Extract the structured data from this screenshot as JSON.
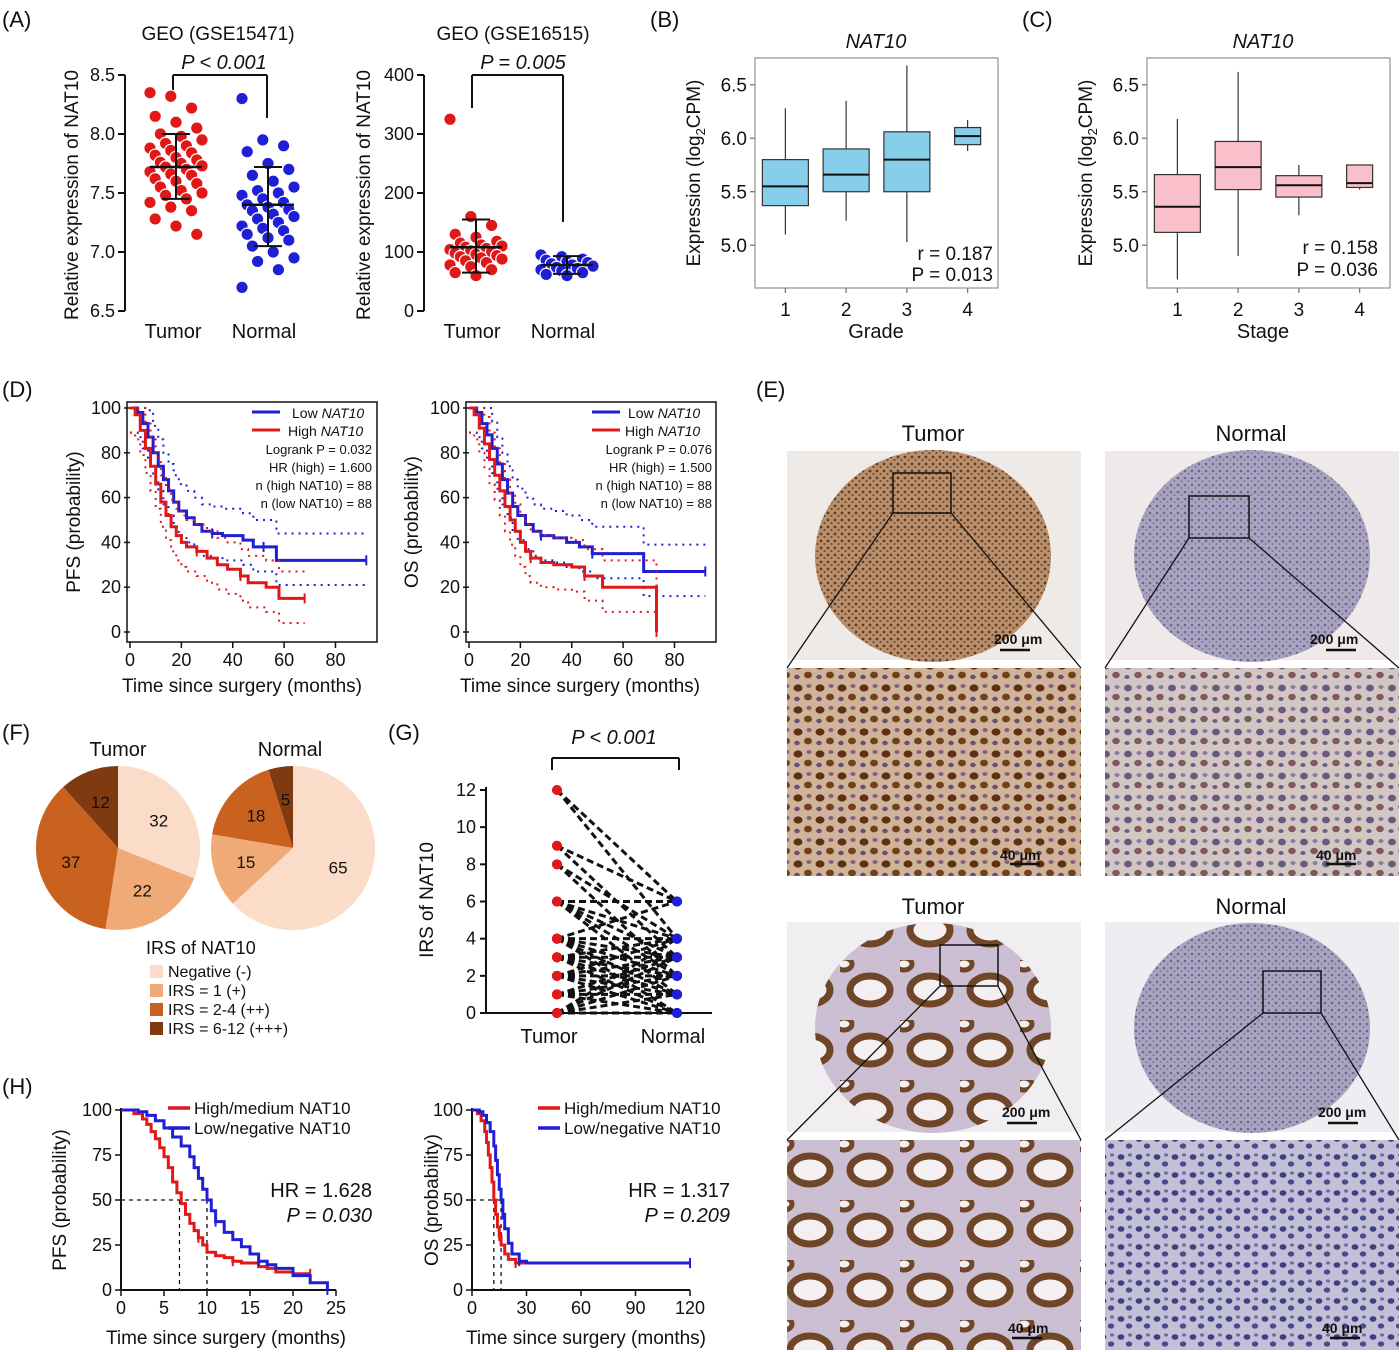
{
  "panels": {
    "A": "(A)",
    "B": "(B)",
    "C": "(C)",
    "D": "(D)",
    "E": "(E)",
    "F": "(F)",
    "G": "(G)",
    "H": "(H)"
  },
  "chart_data": [
    {
      "id": "A1",
      "type": "scatter",
      "title": "GEO (GSE15471)",
      "ylabel": "Relative expression of NAT10",
      "ylim": [
        6.5,
        8.5
      ],
      "yticks": [
        6.5,
        7.0,
        7.5,
        8.0,
        8.5
      ],
      "categories": [
        "Tumor",
        "Normal"
      ],
      "annotation": "P < 0.001",
      "summary": [
        {
          "group": "Tumor",
          "mean": 7.72,
          "sd_low": 7.45,
          "sd_high": 8.0
        },
        {
          "group": "Normal",
          "mean": 7.4,
          "sd_low": 7.05,
          "sd_high": 7.72
        }
      ],
      "series": [
        {
          "group": "Tumor",
          "values": [
            8.35,
            8.32,
            8.22,
            8.15,
            8.1,
            8.05,
            8.0,
            7.98,
            7.95,
            7.92,
            7.9,
            7.88,
            7.86,
            7.84,
            7.82,
            7.8,
            7.78,
            7.76,
            7.75,
            7.73,
            7.72,
            7.7,
            7.68,
            7.66,
            7.65,
            7.62,
            7.6,
            7.58,
            7.55,
            7.52,
            7.5,
            7.48,
            7.45,
            7.42,
            7.38,
            7.35,
            7.28,
            7.22,
            7.15
          ]
        },
        {
          "group": "Normal",
          "values": [
            8.3,
            7.95,
            7.9,
            7.85,
            7.75,
            7.7,
            7.65,
            7.6,
            7.55,
            7.52,
            7.5,
            7.48,
            7.45,
            7.42,
            7.4,
            7.38,
            7.36,
            7.35,
            7.32,
            7.3,
            7.28,
            7.25,
            7.22,
            7.2,
            7.18,
            7.15,
            7.12,
            7.1,
            7.05,
            7.0,
            6.95,
            6.92,
            6.85,
            6.7
          ]
        }
      ]
    },
    {
      "id": "A2",
      "type": "scatter",
      "title": "GEO (GSE16515)",
      "ylabel": "Relative expression of NAT10",
      "ylim": [
        0,
        400
      ],
      "yticks": [
        0,
        100,
        200,
        300,
        400
      ],
      "categories": [
        "Tumor",
        "Normal"
      ],
      "annotation": "P = 0.005",
      "summary": [
        {
          "group": "Tumor",
          "mean": 108,
          "sd_low": 65,
          "sd_high": 155
        },
        {
          "group": "Normal",
          "mean": 78,
          "sd_low": 63,
          "sd_high": 93
        }
      ],
      "series": [
        {
          "group": "Tumor",
          "values": [
            325,
            160,
            145,
            130,
            125,
            118,
            115,
            112,
            110,
            108,
            106,
            104,
            102,
            100,
            98,
            96,
            94,
            92,
            90,
            88,
            85,
            82,
            78,
            75,
            70,
            65,
            60
          ]
        },
        {
          "group": "Normal",
          "values": [
            95,
            92,
            88,
            86,
            84,
            82,
            80,
            78,
            76,
            74,
            72,
            70,
            68,
            65,
            62,
            60
          ]
        }
      ]
    },
    {
      "id": "B",
      "type": "box",
      "title": "NAT10",
      "xlabel": "Grade",
      "ylabel": "Expression (log2CPM)",
      "ylim": [
        4.6,
        6.75
      ],
      "yticks": [
        5.0,
        5.5,
        6.0,
        6.5
      ],
      "categories": [
        "1",
        "2",
        "3",
        "4"
      ],
      "boxes": [
        {
          "min": 5.1,
          "q1": 5.37,
          "median": 5.55,
          "q3": 5.8,
          "max": 6.28
        },
        {
          "min": 5.23,
          "q1": 5.5,
          "median": 5.66,
          "q3": 5.9,
          "max": 6.35
        },
        {
          "min": 5.03,
          "q1": 5.5,
          "median": 5.8,
          "q3": 6.06,
          "max": 6.68
        },
        {
          "min": 5.88,
          "q1": 5.94,
          "median": 6.02,
          "q3": 6.1,
          "max": 6.17
        }
      ],
      "color": "#87CEEB",
      "stats": [
        "r = 0.187",
        "P = 0.013"
      ]
    },
    {
      "id": "C",
      "type": "box",
      "title": "NAT10",
      "xlabel": "Stage",
      "ylabel": "Expression (log2CPM)",
      "ylim": [
        4.6,
        6.75
      ],
      "yticks": [
        5.0,
        5.5,
        6.0,
        6.5
      ],
      "categories": [
        "1",
        "2",
        "3",
        "4"
      ],
      "boxes": [
        {
          "min": 4.68,
          "q1": 5.12,
          "median": 5.36,
          "q3": 5.66,
          "max": 6.18
        },
        {
          "min": 4.9,
          "q1": 5.52,
          "median": 5.73,
          "q3": 5.97,
          "max": 6.62
        },
        {
          "min": 5.28,
          "q1": 5.45,
          "median": 5.56,
          "q3": 5.65,
          "max": 5.75
        },
        {
          "min": 5.52,
          "q1": 5.54,
          "median": 5.58,
          "q3": 5.75,
          "max": 5.75
        }
      ],
      "color": "#F9C0CB",
      "stats": [
        "r = 0.158",
        "P = 0.036"
      ]
    },
    {
      "id": "D1",
      "type": "line",
      "ylabel": "PFS (probability)",
      "xlabel": "Time since surgery (months)",
      "xlim": [
        0,
        95
      ],
      "xticks": [
        0,
        20,
        40,
        60,
        80
      ],
      "ylim": [
        0,
        100
      ],
      "yticks": [
        0,
        20,
        40,
        60,
        80,
        100
      ],
      "legend": [
        "Low NAT10",
        "High NAT10"
      ],
      "stats": [
        "Logrank P = 0.032",
        "HR (high) = 1.600",
        "n (high NAT10) = 88",
        "n (low NAT10) = 88"
      ],
      "series": [
        {
          "name": "Low NAT10",
          "color": "#1f1fd6",
          "x": [
            0,
            3,
            5,
            7,
            9,
            11,
            13,
            15,
            17,
            19,
            22,
            25,
            28,
            32,
            36,
            40,
            44,
            48,
            52,
            57,
            62,
            70,
            80,
            92
          ],
          "y": [
            100,
            98,
            93,
            87,
            80,
            74,
            68,
            63,
            58,
            54,
            51,
            48,
            45,
            44,
            43,
            43,
            41,
            38,
            38,
            32,
            32,
            32,
            32,
            32
          ]
        },
        {
          "name": "High NAT10",
          "color": "#e01818",
          "x": [
            0,
            2,
            4,
            6,
            8,
            10,
            12,
            14,
            16,
            18,
            20,
            22,
            26,
            30,
            34,
            38,
            43,
            46,
            53,
            58,
            68
          ],
          "y": [
            100,
            97,
            90,
            82,
            74,
            66,
            58,
            52,
            47,
            43,
            40,
            38,
            36,
            33,
            30,
            28,
            25,
            22,
            20,
            15,
            15
          ]
        }
      ]
    },
    {
      "id": "D2",
      "type": "line",
      "ylabel": "OS (probability)",
      "xlabel": "Time since surgery (months)",
      "xlim": [
        0,
        95
      ],
      "xticks": [
        0,
        20,
        40,
        60,
        80
      ],
      "ylim": [
        0,
        100
      ],
      "yticks": [
        0,
        20,
        40,
        60,
        80,
        100
      ],
      "legend": [
        "Low NAT10",
        "High NAT10"
      ],
      "stats": [
        "Logrank P = 0.076",
        "HR (high) = 1.500",
        "n (high NAT10) = 88",
        "n (low NAT10) = 88"
      ],
      "series": [
        {
          "name": "Low NAT10",
          "color": "#1f1fd6",
          "x": [
            0,
            3,
            5,
            7,
            9,
            11,
            13,
            15,
            17,
            19,
            22,
            25,
            28,
            33,
            38,
            43,
            48,
            55,
            62,
            68,
            75,
            92
          ],
          "y": [
            100,
            98,
            93,
            88,
            82,
            75,
            68,
            62,
            56,
            52,
            48,
            45,
            43,
            42,
            40,
            38,
            35,
            35,
            35,
            27,
            27,
            27
          ]
        },
        {
          "name": "High NAT10",
          "color": "#e01818",
          "x": [
            0,
            2,
            4,
            6,
            8,
            10,
            12,
            14,
            16,
            18,
            20,
            22,
            24,
            28,
            33,
            40,
            45,
            52,
            58,
            66,
            72,
            73
          ],
          "y": [
            100,
            97,
            91,
            84,
            77,
            70,
            63,
            56,
            50,
            45,
            40,
            36,
            33,
            31,
            30,
            29,
            25,
            20,
            20,
            20,
            20,
            0
          ]
        }
      ]
    },
    {
      "id": "F",
      "type": "pie",
      "legend_title": "IRS of NAT10",
      "legend": [
        "Negative (-)",
        "IRS = 1 (+)",
        "IRS = 2-4 (++)",
        "IRS = 6-12 (+++)"
      ],
      "colors": [
        "#FADCC8",
        "#F0AA78",
        "#C8621E",
        "#7F3A12"
      ],
      "pies": [
        {
          "title": "Tumor",
          "values": [
            32,
            22,
            37,
            12
          ]
        },
        {
          "title": "Normal",
          "values": [
            65,
            15,
            18,
            5
          ]
        }
      ]
    },
    {
      "id": "G",
      "type": "scatter",
      "ylabel": "IRS of NAT10",
      "categories": [
        "Tumor",
        "Normal"
      ],
      "ylim": [
        0,
        12
      ],
      "yticks": [
        0,
        2,
        4,
        6,
        8,
        10,
        12
      ],
      "annotation": "P < 0.001",
      "pairs": [
        [
          12,
          6
        ],
        [
          12,
          4
        ],
        [
          9,
          6
        ],
        [
          9,
          3
        ],
        [
          8,
          4
        ],
        [
          8,
          2
        ],
        [
          6,
          6
        ],
        [
          6,
          4
        ],
        [
          6,
          3
        ],
        [
          6,
          2
        ],
        [
          6,
          1
        ],
        [
          4,
          4
        ],
        [
          4,
          3
        ],
        [
          4,
          2
        ],
        [
          4,
          1
        ],
        [
          4,
          0
        ],
        [
          3,
          3
        ],
        [
          3,
          2
        ],
        [
          3,
          1
        ],
        [
          3,
          0
        ],
        [
          2,
          4
        ],
        [
          2,
          2
        ],
        [
          2,
          1
        ],
        [
          2,
          0
        ],
        [
          1,
          3
        ],
        [
          1,
          1
        ],
        [
          1,
          0
        ],
        [
          0,
          2
        ],
        [
          0,
          1
        ],
        [
          0,
          0
        ],
        [
          4,
          6
        ],
        [
          3,
          4
        ],
        [
          2,
          3
        ],
        [
          1,
          2
        ],
        [
          0,
          4
        ],
        [
          0,
          3
        ]
      ]
    },
    {
      "id": "H1",
      "type": "line",
      "ylabel": "PFS (probability)",
      "xlabel": "Time since surgery (months)",
      "xlim": [
        0,
        25
      ],
      "xticks": [
        0,
        5,
        10,
        15,
        20,
        25
      ],
      "ylim": [
        0,
        100
      ],
      "yticks": [
        0,
        25,
        50,
        75,
        100
      ],
      "legend": [
        "High/medium NAT10",
        "Low/negative NAT10"
      ],
      "stats": [
        "HR = 1.628",
        "P = 0.030"
      ],
      "medians": [
        6.8,
        10
      ],
      "series": [
        {
          "name": "High/medium NAT10",
          "color": "#e01818",
          "x": [
            0,
            1.5,
            2.5,
            3,
            3.5,
            4,
            4.5,
            5,
            5.5,
            6,
            6.5,
            7,
            7.5,
            8,
            8.5,
            9,
            9.5,
            10,
            11,
            12,
            13,
            14,
            16,
            17,
            18,
            20,
            22
          ],
          "y": [
            100,
            98,
            95,
            92,
            88,
            84,
            79,
            74,
            68,
            60,
            54,
            48,
            42,
            37,
            33,
            29,
            25,
            21,
            19,
            18,
            16,
            15,
            13,
            12,
            10,
            9,
            9
          ]
        },
        {
          "name": "Low/negative NAT10",
          "color": "#1f1fd6",
          "x": [
            0,
            2,
            3,
            4,
            5,
            6,
            7,
            8,
            8.5,
            9,
            9.5,
            10,
            10.5,
            11,
            12,
            13,
            14,
            15,
            16,
            17,
            18,
            20,
            22,
            24
          ],
          "y": [
            100,
            99,
            97,
            94,
            90,
            85,
            80,
            74,
            68,
            62,
            56,
            50,
            44,
            38,
            32,
            28,
            24,
            20,
            16,
            14,
            12,
            8,
            4,
            0
          ]
        }
      ]
    },
    {
      "id": "H2",
      "type": "line",
      "ylabel": "OS (probability)",
      "xlabel": "Time since surgery (months)",
      "xlim": [
        0,
        120
      ],
      "xticks": [
        0,
        30,
        60,
        90,
        120
      ],
      "ylim": [
        0,
        100
      ],
      "yticks": [
        0,
        25,
        50,
        75,
        100
      ],
      "legend": [
        "High/medium NAT10",
        "Low/negative NAT10"
      ],
      "stats": [
        "HR = 1.317",
        "P = 0.209"
      ],
      "medians": [
        12,
        16
      ],
      "series": [
        {
          "name": "High/medium NAT10",
          "color": "#e01818",
          "x": [
            0,
            3,
            5,
            7,
            8,
            9,
            10,
            11,
            12,
            13,
            14,
            15,
            16,
            18,
            20,
            24,
            30,
            60,
            90,
            120
          ],
          "y": [
            100,
            98,
            94,
            88,
            82,
            75,
            68,
            60,
            50,
            42,
            35,
            30,
            25,
            20,
            17,
            15,
            15,
            15,
            15,
            15
          ]
        },
        {
          "name": "Low/negative NAT10",
          "color": "#1f1fd6",
          "x": [
            0,
            4,
            6,
            8,
            10,
            12,
            13,
            14,
            15,
            16,
            17,
            18,
            20,
            22,
            26,
            30,
            60,
            90,
            120
          ],
          "y": [
            100,
            99,
            97,
            93,
            88,
            80,
            72,
            64,
            56,
            50,
            42,
            34,
            26,
            20,
            16,
            15,
            15,
            15,
            15
          ]
        }
      ]
    }
  ],
  "ihc": {
    "top": {
      "tumor_label": "Tumor",
      "normal_label": "Normal"
    },
    "bottom": {
      "tumor_label": "Tumor",
      "normal_label": "Normal"
    },
    "scale_large": "200 μm",
    "scale_small": "40 μm"
  }
}
